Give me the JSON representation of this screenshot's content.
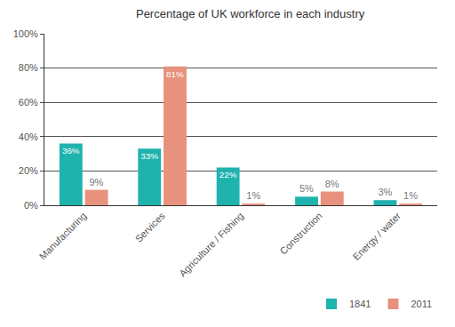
{
  "chart_data": {
    "type": "bar",
    "title": "Percentage of UK workforce in each industry",
    "categories": [
      "Manufacturing",
      "Services",
      "Agriculture / Fishing",
      "Construction",
      "Energy / water"
    ],
    "series": [
      {
        "name": "1841",
        "color": "#1fb3ae",
        "values": [
          36,
          33,
          22,
          5,
          3
        ],
        "value_labels": [
          "36%",
          "33%",
          "22%",
          "5%",
          "3%"
        ]
      },
      {
        "name": "2011",
        "color": "#e8917d",
        "values": [
          9,
          81,
          1,
          8,
          1
        ],
        "value_labels": [
          "9%",
          "81%",
          "1%",
          "8%",
          "1%"
        ]
      }
    ],
    "ylim": [
      0,
      100
    ],
    "yticks": [
      {
        "value": 0,
        "label": "0%"
      },
      {
        "value": 20,
        "label": "20%"
      },
      {
        "value": 40,
        "label": "40%"
      },
      {
        "value": 60,
        "label": "60%"
      },
      {
        "value": 80,
        "label": "80%"
      },
      {
        "value": 100,
        "label": "100%"
      }
    ],
    "grid": true,
    "legend": "bottom right",
    "data_labels": true
  }
}
